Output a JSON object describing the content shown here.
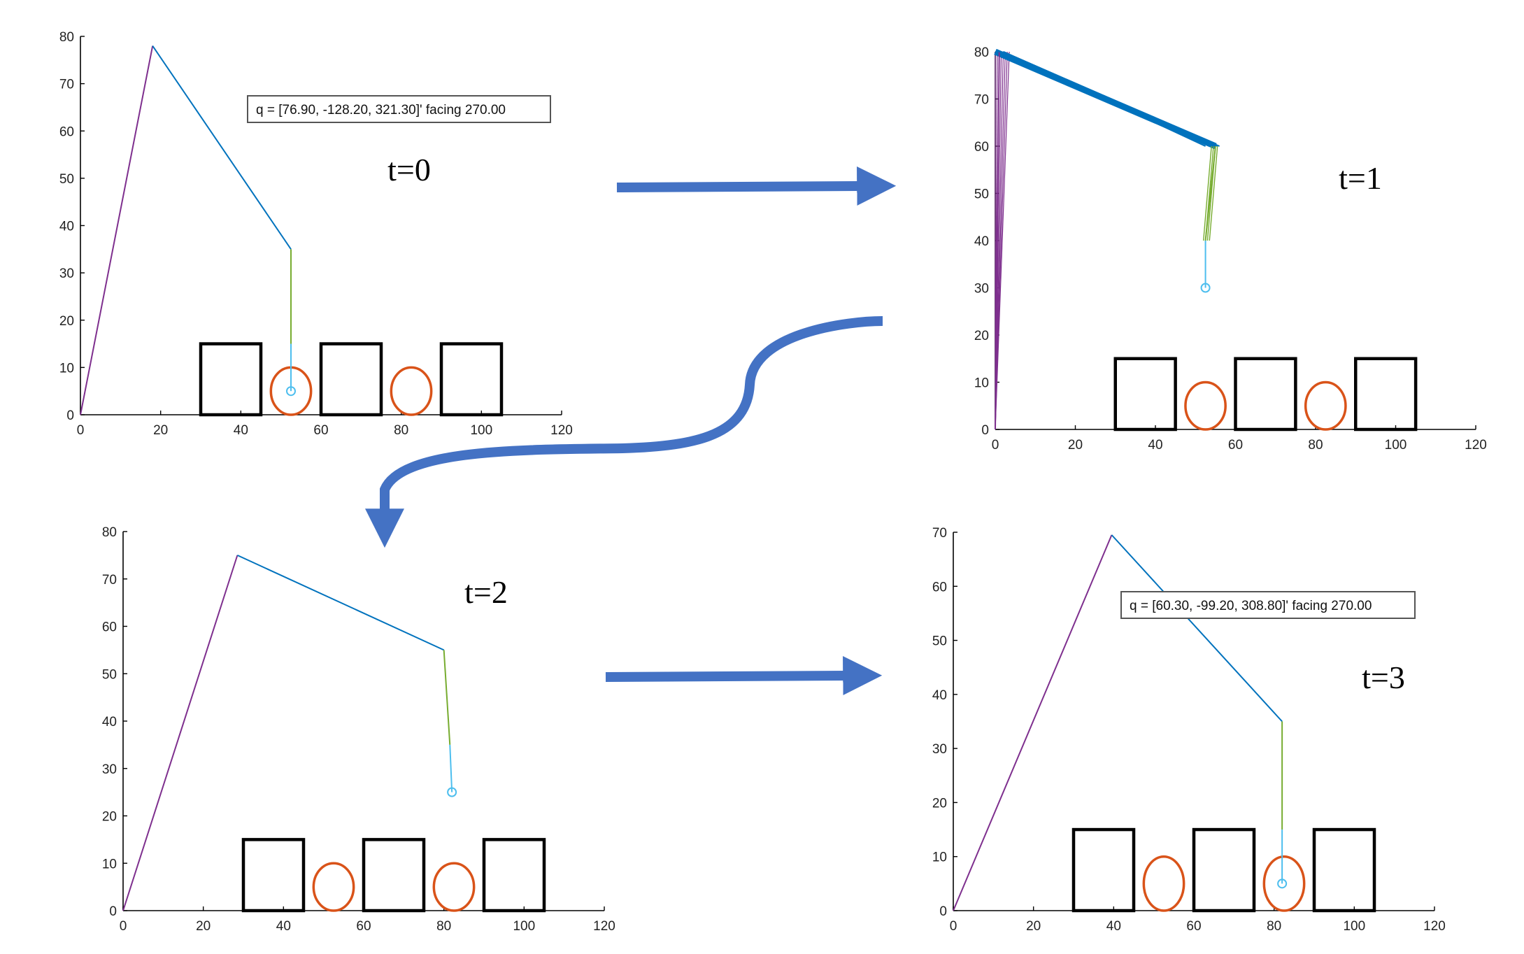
{
  "figure": {
    "arrow_color": "#4472C4",
    "colors": {
      "link1": "#7E2F8E",
      "link2": "#0072BD",
      "link3": "#77AC30",
      "effector": "#4DBEEE",
      "box": "#000000",
      "circle": "#D95319",
      "axis": "#000000"
    }
  },
  "panels": [
    {
      "id": "t0",
      "time_label": "t=0",
      "query_text": "q = [76.90, -128.20, 321.30]' facing 270.00",
      "xlim": [
        0,
        120
      ],
      "ylim": [
        0,
        80
      ],
      "xticks": [
        0,
        20,
        40,
        60,
        80,
        100,
        120
      ],
      "yticks": [
        0,
        10,
        20,
        30,
        40,
        50,
        60,
        70,
        80
      ],
      "joints": [
        [
          0,
          0
        ],
        [
          18,
          78
        ],
        [
          52.5,
          35
        ],
        [
          52.5,
          15
        ],
        [
          52.5,
          5
        ]
      ],
      "boxes": [
        [
          30,
          45,
          0,
          15
        ],
        [
          60,
          75,
          0,
          15
        ],
        [
          90,
          105,
          0,
          15
        ]
      ],
      "circles": [
        [
          52.5,
          5,
          5,
          5
        ],
        [
          82.5,
          5,
          5,
          5
        ]
      ]
    },
    {
      "id": "t1",
      "time_label": "t=1",
      "xlim": [
        0,
        120
      ],
      "ylim": [
        0,
        80
      ],
      "xticks": [
        0,
        20,
        40,
        60,
        80,
        100,
        120
      ],
      "yticks": [
        0,
        10,
        20,
        30,
        40,
        50,
        60,
        70,
        80
      ],
      "joints": [
        [
          0,
          0
        ],
        [
          1,
          80
        ],
        [
          55,
          60
        ],
        [
          52.5,
          40
        ],
        [
          52.5,
          30
        ]
      ],
      "trail_link1_tops": [
        0,
        0.5,
        1,
        1.5,
        2,
        2.5,
        3,
        3.5
      ],
      "trail_link2_ends": [
        [
          52.5,
          60
        ],
        [
          53.5,
          60
        ],
        [
          54.5,
          60
        ],
        [
          55.5,
          60
        ],
        [
          56,
          60
        ]
      ],
      "trail_link3_ends": [
        52,
        52.5,
        53,
        53.5
      ],
      "boxes": [
        [
          30,
          45,
          0,
          15
        ],
        [
          60,
          75,
          0,
          15
        ],
        [
          90,
          105,
          0,
          15
        ]
      ],
      "circles": [
        [
          52.5,
          5,
          5,
          5
        ],
        [
          82.5,
          5,
          5,
          5
        ]
      ]
    },
    {
      "id": "t2",
      "time_label": "t=2",
      "xlim": [
        0,
        120
      ],
      "ylim": [
        0,
        80
      ],
      "xticks": [
        0,
        20,
        40,
        60,
        80,
        100,
        120
      ],
      "yticks": [
        0,
        10,
        20,
        30,
        40,
        50,
        60,
        70,
        80
      ],
      "joints": [
        [
          0,
          0
        ],
        [
          28.5,
          75
        ],
        [
          80,
          55
        ],
        [
          81.5,
          35
        ],
        [
          82,
          25
        ]
      ],
      "boxes": [
        [
          30,
          45,
          0,
          15
        ],
        [
          60,
          75,
          0,
          15
        ],
        [
          90,
          105,
          0,
          15
        ]
      ],
      "circles": [
        [
          52.5,
          5,
          5,
          5
        ],
        [
          82.5,
          5,
          5,
          5
        ]
      ]
    },
    {
      "id": "t3",
      "time_label": "t=3",
      "query_text": "q = [60.30, -99.20, 308.80]' facing 270.00",
      "xlim": [
        0,
        120
      ],
      "ylim": [
        0,
        70
      ],
      "xticks": [
        0,
        20,
        40,
        60,
        80,
        100,
        120
      ],
      "yticks": [
        0,
        10,
        20,
        30,
        40,
        50,
        60,
        70
      ],
      "joints": [
        [
          0,
          0
        ],
        [
          39.5,
          69.5
        ],
        [
          82,
          35
        ],
        [
          82,
          15
        ],
        [
          82,
          5
        ]
      ],
      "boxes": [
        [
          30,
          45,
          0,
          15
        ],
        [
          60,
          75,
          0,
          15
        ],
        [
          90,
          105,
          0,
          15
        ]
      ],
      "circles": [
        [
          52.5,
          5,
          5,
          5
        ],
        [
          82.5,
          5,
          5,
          5
        ]
      ]
    }
  ]
}
